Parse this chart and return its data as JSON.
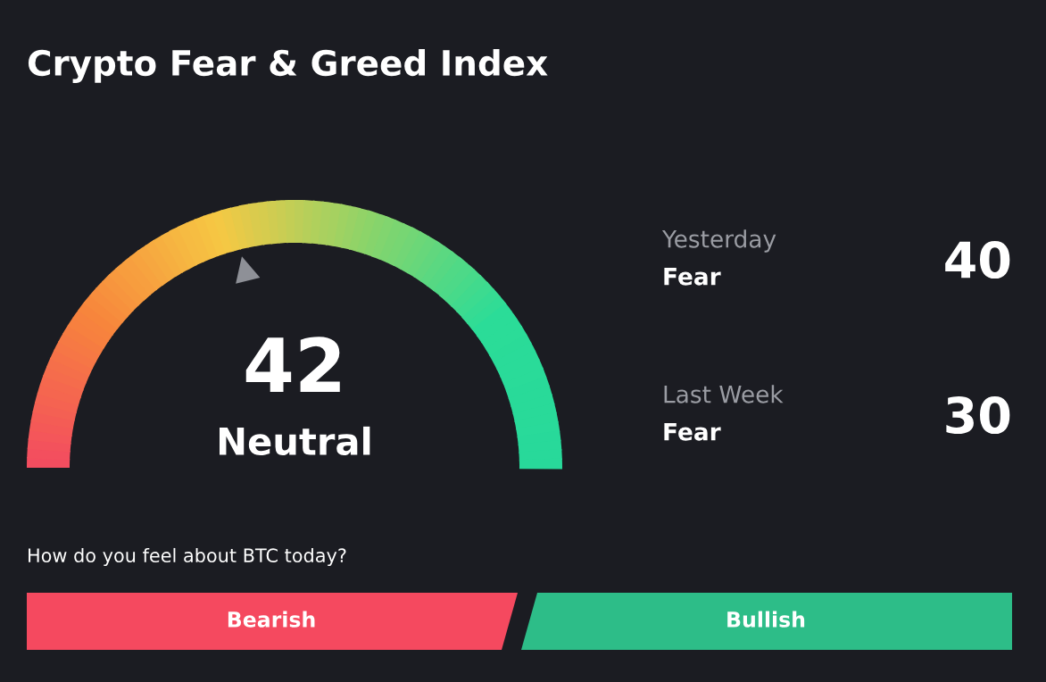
{
  "chart_data": {
    "type": "other",
    "title": "Crypto Fear & Greed Index",
    "categories": [
      null,
      "Yesterday",
      "Last Week"
    ],
    "values": [
      42,
      40,
      30
    ],
    "data_labels": true,
    "annotations": [
      "Neutral",
      "Fear",
      "Fear",
      "How do you feel about BTC today?",
      "Bearish",
      "Bullish"
    ]
  }
}
